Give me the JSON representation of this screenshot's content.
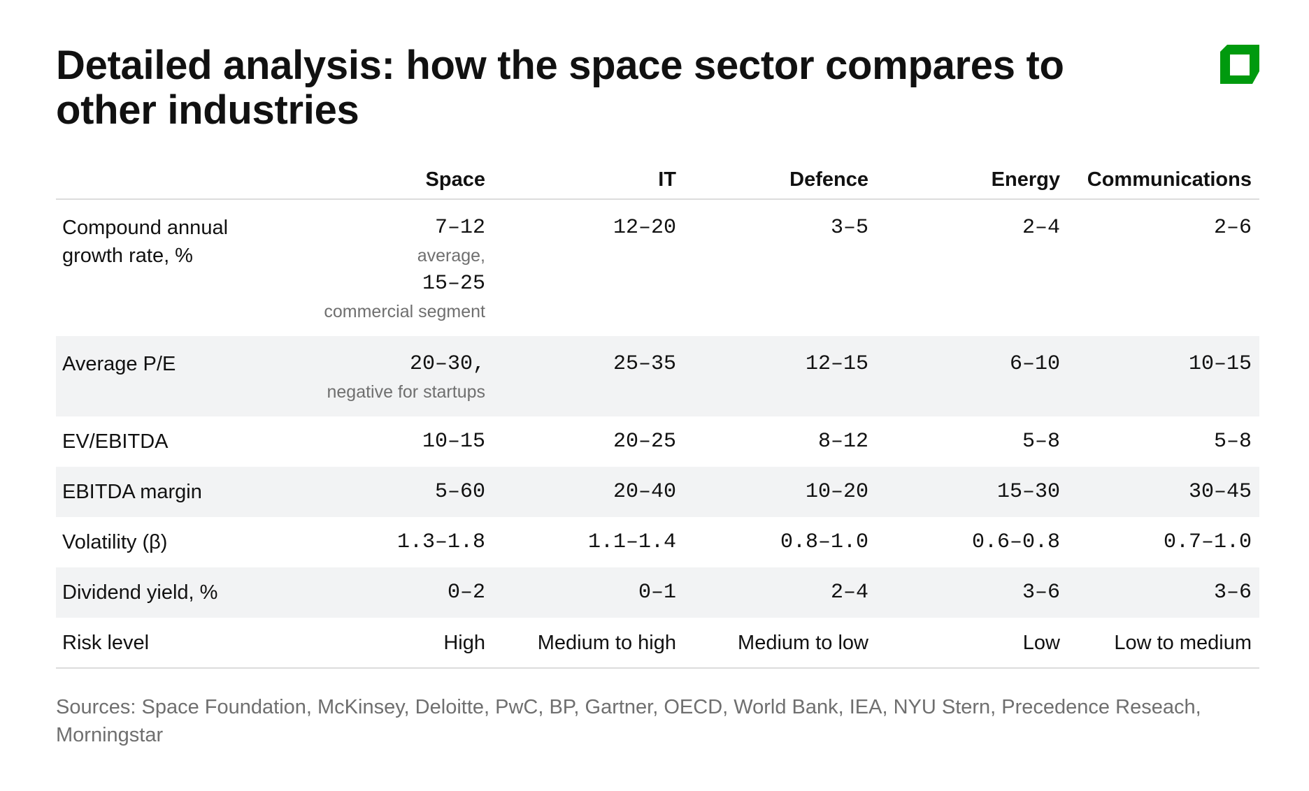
{
  "title": "Detailed analysis: how the space sector compares to other industries",
  "logo": {
    "icon": "green-square-logo",
    "color": "#009a0e"
  },
  "columns": [
    "",
    "Space",
    "IT",
    "Defence",
    "Energy",
    "Communications"
  ],
  "rows": [
    {
      "label": "Compound annual growth rate, %",
      "cells": [
        {
          "value": "7–12",
          "note": "average,",
          "value2": "15–25",
          "note2": "commercial segment"
        },
        {
          "value": "12–20"
        },
        {
          "value": "3–5"
        },
        {
          "value": "2–4"
        },
        {
          "value": "2–6"
        }
      ]
    },
    {
      "label": "Average P/E",
      "cells": [
        {
          "value": "20–30,",
          "note": "negative for startups"
        },
        {
          "value": "25–35"
        },
        {
          "value": "12–15"
        },
        {
          "value": "6–10"
        },
        {
          "value": "10–15"
        }
      ]
    },
    {
      "label": "EV/EBITDA",
      "cells": [
        {
          "value": "10–15"
        },
        {
          "value": "20–25"
        },
        {
          "value": "8–12"
        },
        {
          "value": "5–8"
        },
        {
          "value": "5–8"
        }
      ]
    },
    {
      "label": "EBITDA margin",
      "cells": [
        {
          "value": "5–60"
        },
        {
          "value": "20–40"
        },
        {
          "value": "10–20"
        },
        {
          "value": "15–30"
        },
        {
          "value": "30–45"
        }
      ]
    },
    {
      "label": "Volatility (β)",
      "cells": [
        {
          "value": "1.3–1.8"
        },
        {
          "value": "1.1–1.4"
        },
        {
          "value": "0.8–1.0"
        },
        {
          "value": "0.6–0.8"
        },
        {
          "value": "0.7–1.0"
        }
      ]
    },
    {
      "label": "Dividend yield, %",
      "cells": [
        {
          "value": "0–2"
        },
        {
          "value": "0–1"
        },
        {
          "value": "2–4"
        },
        {
          "value": "3–6"
        },
        {
          "value": "3–6"
        }
      ]
    },
    {
      "label": "Risk level",
      "cells": [
        {
          "value": "High"
        },
        {
          "value": "Medium to high"
        },
        {
          "value": "Medium to low"
        },
        {
          "value": "Low"
        },
        {
          "value": "Low to medium"
        }
      ]
    }
  ],
  "sources": "Sources: Space Foundation, McKinsey, Deloitte, PwC, BP, Gartner, OECD, World Bank, IEA, NYU Stern, Precedence Reseach, Morningstar"
}
